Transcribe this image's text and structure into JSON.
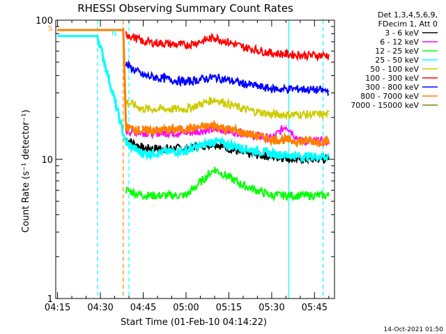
{
  "chart_data": {
    "type": "line",
    "title": "RHESSI Observing Summary Count Rates",
    "xlabel": "Start Time (01-Feb-10 04:14:22)",
    "ylabel": "Count Rate (s⁻¹ detector⁻¹)",
    "yscale": "log",
    "ylim": [
      1,
      100
    ],
    "xlim": [
      "04:14:22",
      "05:52"
    ],
    "x_ticks": [
      "04:15",
      "04:30",
      "04:45",
      "05:00",
      "05:15",
      "05:30",
      "05:45"
    ],
    "y_ticks": [
      "1",
      "10",
      "100"
    ],
    "legend_placement": "right",
    "legend_header": [
      "Det 1,3,4,5,6,9,",
      "FDecim 1, Att 0"
    ],
    "series": [
      {
        "name": "3 - 6 keV",
        "color": "#000000",
        "x": [
          "04:39",
          "04:45",
          "05:00",
          "05:10",
          "05:20",
          "05:30",
          "05:40",
          "05:50"
        ],
        "values": [
          14,
          12,
          12,
          13,
          11,
          10.5,
          10,
          10
        ]
      },
      {
        "name": "6 - 12 keV",
        "color": "#ff00ff",
        "x": [
          "04:39",
          "04:45",
          "05:00",
          "05:10",
          "05:20",
          "05:30",
          "05:35",
          "05:40",
          "05:50"
        ],
        "values": [
          16,
          15.5,
          15.5,
          16.5,
          15.5,
          14,
          17.5,
          13.5,
          13.5
        ]
      },
      {
        "name": "12 - 25 keV",
        "color": "#00ff00",
        "x": [
          "04:39",
          "04:45",
          "05:00",
          "05:10",
          "05:20",
          "05:30",
          "05:40",
          "05:50"
        ],
        "values": [
          6,
          5.5,
          5.5,
          8.5,
          6.5,
          5.5,
          5.5,
          5.5
        ]
      },
      {
        "name": "25 - 50 keV",
        "color": "#00ffff",
        "x": [
          "04:15",
          "04:29",
          "04:39",
          "04:45",
          "05:00",
          "05:10",
          "05:20",
          "05:30",
          "05:40",
          "05:50"
        ],
        "values": [
          77,
          77,
          13,
          11,
          11.5,
          13.5,
          12,
          11,
          10.5,
          10.5
        ]
      },
      {
        "name": "50 - 100 keV",
        "color": "#cccc00",
        "x": [
          "04:39",
          "04:45",
          "05:00",
          "05:10",
          "05:20",
          "05:30",
          "05:40",
          "05:50"
        ],
        "values": [
          26,
          23,
          23,
          27,
          23,
          21,
          21,
          21
        ]
      },
      {
        "name": "100 - 300 keV",
        "color": "#ff0000",
        "x": [
          "04:39",
          "04:45",
          "05:00",
          "05:10",
          "05:20",
          "05:30",
          "05:40",
          "05:50"
        ],
        "values": [
          80,
          70,
          66,
          75,
          64,
          58,
          56,
          56
        ]
      },
      {
        "name": "300 - 800 keV",
        "color": "#0000ff",
        "x": [
          "04:39",
          "04:45",
          "05:00",
          "05:10",
          "05:20",
          "05:30",
          "05:40",
          "05:50"
        ],
        "values": [
          48,
          40,
          36,
          39,
          35,
          32,
          32,
          31
        ]
      },
      {
        "name": "800 - 7000 keV",
        "color": "#ff8000",
        "x": [
          "04:15",
          "04:38",
          "04:39",
          "04:45",
          "05:00",
          "05:10",
          "05:20",
          "05:30",
          "05:40",
          "05:50"
        ],
        "values": [
          85,
          85,
          17,
          16,
          16.5,
          17.5,
          15.5,
          14,
          13.5,
          13.5
        ]
      },
      {
        "name": "7000 - 15000 keV",
        "color": "#808000",
        "x": [],
        "values": []
      }
    ],
    "markers": [
      {
        "label": "S",
        "x": "04:15",
        "color": "#ff8000"
      },
      {
        "label": "N",
        "x": "04:31",
        "color": "#00ffff"
      }
    ],
    "vlines": [
      {
        "x": "04:29",
        "color": "#00ffff",
        "style": "dashed"
      },
      {
        "x": "04:38",
        "color": "#ff8000",
        "style": "dashed"
      },
      {
        "x": "04:40",
        "color": "#00ffff",
        "style": "dashed"
      },
      {
        "x": "05:36",
        "color": "#00ffff",
        "style": "solid"
      },
      {
        "x": "05:48",
        "color": "#00ffff",
        "style": "dashed"
      }
    ]
  },
  "footer": {
    "timestamp": "14-Oct-2021 01:50"
  }
}
